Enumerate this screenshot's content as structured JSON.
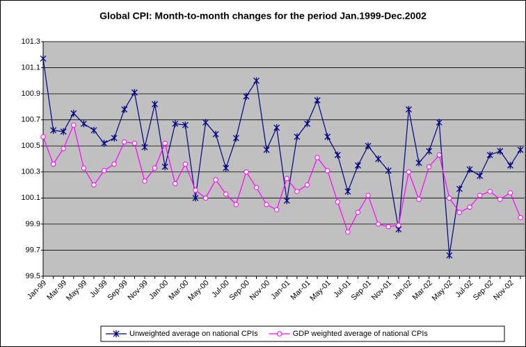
{
  "chart_data": {
    "type": "line",
    "title": "Global CPI: Month-to-month changes for the period Jan.1999-Dec.2002",
    "categories": [
      "Jan-99",
      null,
      "Mar-99",
      null,
      "May-99",
      null,
      "Jul-99",
      null,
      "Sep-99",
      null,
      "Nov-99",
      null,
      "Jan-00",
      null,
      "Mar-00",
      null,
      "May-00",
      null,
      "Jul-00",
      null,
      "Sep-00",
      null,
      "Nov-00",
      null,
      "Jan-01",
      null,
      "Mar-01",
      null,
      "May-01",
      null,
      "Jul-01",
      null,
      "Sep-01",
      null,
      "Nov-01",
      null,
      "Jan-02",
      null,
      "Mar-02",
      null,
      "May-02",
      null,
      "Jul-02",
      null,
      "Sep-02",
      null,
      "Nov-02",
      null
    ],
    "series": [
      {
        "name": "Unweighted average on national CPIs",
        "color": "#000080",
        "marker": "star",
        "values": [
          101.17,
          100.62,
          100.61,
          100.75,
          100.67,
          100.62,
          100.52,
          100.56,
          100.78,
          100.91,
          100.49,
          100.82,
          100.34,
          100.67,
          100.66,
          100.1,
          100.68,
          100.59,
          100.33,
          100.56,
          100.88,
          101.0,
          100.47,
          100.64,
          100.08,
          100.57,
          100.67,
          100.85,
          100.57,
          100.43,
          100.15,
          100.35,
          100.5,
          100.4,
          100.31,
          99.86,
          100.78,
          100.37,
          100.46,
          100.68,
          99.66,
          100.17,
          100.32,
          100.27,
          100.43,
          100.46,
          100.35,
          100.47
        ]
      },
      {
        "name": "GDP weighted average of national CPIs",
        "color": "#ff00ff",
        "marker": "circle",
        "values": [
          100.57,
          100.36,
          100.48,
          100.66,
          100.33,
          100.2,
          100.31,
          100.36,
          100.53,
          100.52,
          100.23,
          100.33,
          100.52,
          100.21,
          100.36,
          100.16,
          100.1,
          100.24,
          100.13,
          100.05,
          100.3,
          100.18,
          100.05,
          100.01,
          100.25,
          100.15,
          100.2,
          100.41,
          100.31,
          100.07,
          99.84,
          99.99,
          100.12,
          99.9,
          99.88,
          99.89,
          100.3,
          100.09,
          100.34,
          100.43,
          100.1,
          99.99,
          100.03,
          100.12,
          100.15,
          100.09,
          100.14,
          99.95
        ]
      }
    ],
    "ylim": [
      99.5,
      101.3
    ],
    "yticks": [
      99.5,
      99.7,
      99.9,
      100.1,
      100.3,
      100.5,
      100.7,
      100.9,
      101.1,
      101.3
    ],
    "grid": true,
    "legend": "bottom",
    "plot_background": "#c0c0c0"
  }
}
